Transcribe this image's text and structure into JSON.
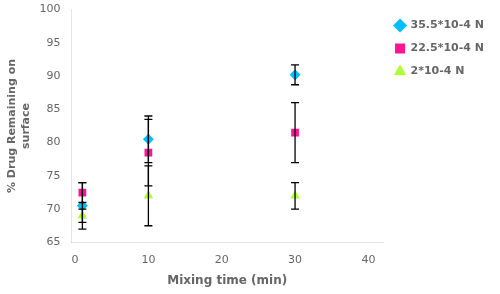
{
  "chart_data": {
    "type": "scatter",
    "xlabel": "Mixing time (min)",
    "ylabel": "% Drug Remaining on\nsurface",
    "xlim": [
      -0.5,
      42
    ],
    "ylim": [
      65,
      100
    ],
    "xticks": [
      0,
      10,
      20,
      30,
      40
    ],
    "yticks": [
      65,
      70,
      75,
      80,
      85,
      90,
      95,
      100
    ],
    "grid": false,
    "legend": "upper right",
    "series": [
      {
        "name": "35.5*10-4 N",
        "color": "#00BFFF",
        "marker": "diamond",
        "x": [
          1,
          10,
          30
        ],
        "values": [
          70.5,
          80.5,
          90.2
        ],
        "yerr": [
          3.5,
          3.5,
          1.5
        ]
      },
      {
        "name": "22.5*10-4 N",
        "color": "#FF1493",
        "marker": "square",
        "x": [
          1,
          10,
          30
        ],
        "values": [
          72.5,
          78.5,
          81.5
        ],
        "yerr": [
          1.5,
          5.0,
          4.5
        ]
      },
      {
        "name": "2*10-4 N",
        "color": "#ADFF2F",
        "marker": "triangle",
        "x": [
          1,
          10,
          30
        ],
        "values": [
          69.0,
          72.0,
          72.0
        ],
        "yerr": [
          1.0,
          4.5,
          2.0
        ]
      }
    ]
  }
}
